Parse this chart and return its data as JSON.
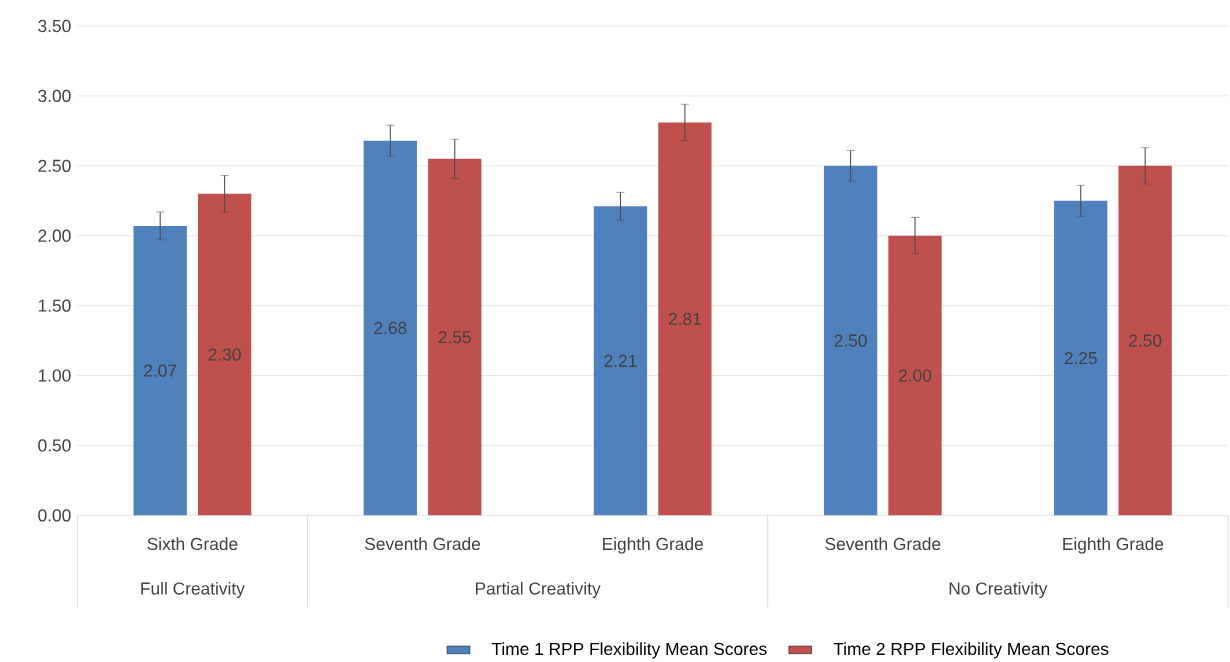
{
  "chart_data": {
    "type": "bar",
    "categories": [
      "Sixth Grade",
      "Seventh Grade",
      "Eighth Grade",
      "Seventh Grade",
      "Eighth Grade"
    ],
    "annotations": [
      "Full Creativity",
      "Partial Creativity",
      "No Creativity"
    ],
    "series": [
      {
        "name": "Time 1 RPP Flexibility Mean Scores",
        "color": "#4f81bd",
        "values": [
          2.07,
          2.68,
          2.21,
          2.5,
          2.25
        ],
        "errors": [
          0.1,
          0.11,
          0.1,
          0.11,
          0.11
        ],
        "value_labels": [
          "2.07",
          "2.68",
          "2.21",
          "2.50",
          "2.25"
        ]
      },
      {
        "name": "Time 2 RPP Flexibility Mean Scores",
        "color": "#c0504d",
        "values": [
          2.3,
          2.55,
          2.81,
          2.0,
          2.5
        ],
        "errors": [
          0.13,
          0.14,
          0.13,
          0.13,
          0.13
        ],
        "value_labels": [
          "2.30",
          "2.55",
          "2.81",
          "2.00",
          "2.50"
        ]
      }
    ],
    "ylim": [
      0,
      3.5
    ],
    "yticks": [
      {
        "value": 0,
        "label": "0.00"
      },
      {
        "value": 0.5,
        "label": "0.50"
      },
      {
        "value": 1,
        "label": "1.00"
      },
      {
        "value": 1.5,
        "label": "1.50"
      },
      {
        "value": 2,
        "label": "2.00"
      },
      {
        "value": 2.5,
        "label": "2.50"
      },
      {
        "value": 3,
        "label": "3.00"
      },
      {
        "value": 3.5,
        "label": "3.50"
      }
    ],
    "grid": "y",
    "legend": "bottom"
  }
}
